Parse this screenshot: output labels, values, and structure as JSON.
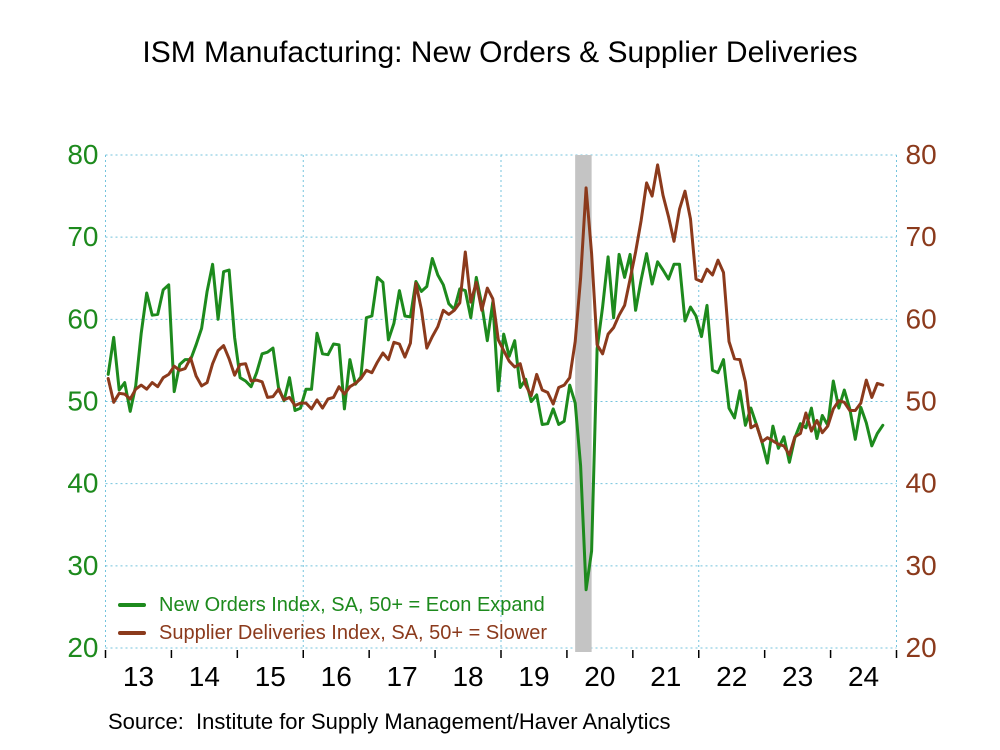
{
  "header": {
    "title": "ISM Manufacturing: New Orders & Supplier Deliveries"
  },
  "source": {
    "text": "Source:  Institute for Supply Management/Haver Analytics"
  },
  "legend": {
    "items": [
      {
        "label": "New Orders Index, SA, 50+ = Econ Expand",
        "color": "#1d8a1d"
      },
      {
        "label": "Supplier Deliveries Index, SA, 50+ = Slower",
        "color": "#8b3a1c"
      }
    ]
  },
  "chart_data": {
    "type": "line",
    "title": "ISM Manufacturing: New Orders & Supplier Deliveries",
    "xlabel": "",
    "ylabel": "",
    "x_months": "2013-01 to 2024-10, monthly",
    "x_axis": {
      "range_years": [
        2013,
        2025
      ],
      "tick_labels": [
        "13",
        "14",
        "15",
        "16",
        "17",
        "18",
        "19",
        "20",
        "21",
        "22",
        "23",
        "24"
      ]
    },
    "y_axis": {
      "ticks": [
        80,
        70,
        60,
        50,
        40,
        30,
        20
      ],
      "range": [
        20,
        80
      ],
      "left_color": "#1d8a1d",
      "right_color": "#8b3a1c"
    },
    "grid": {
      "color": "#74c3dd",
      "h_values": [
        80,
        70,
        60,
        50,
        40,
        30,
        20
      ],
      "v_years": [
        2013,
        2016,
        2019,
        2022,
        2025
      ],
      "style": "dashed"
    },
    "recession_band": {
      "label": "2020 recession shading",
      "from": "2020-02",
      "to": "2020-04",
      "start_index": 85,
      "end_index": 87,
      "color": "#c4c4c4"
    },
    "series": [
      {
        "name": "New Orders Index, SA, 50+ = Econ Expand",
        "id": "new-orders",
        "color": "#1d8a1d",
        "values": [
          53.3,
          57.8,
          51.4,
          52.3,
          48.8,
          51.9,
          58.3,
          63.2,
          60.5,
          60.6,
          63.6,
          64.2,
          51.2,
          54.5,
          55.1,
          55.1,
          56.9,
          58.9,
          63.4,
          66.7,
          60.0,
          65.8,
          66.0,
          57.8,
          52.9,
          52.5,
          51.8,
          53.5,
          55.8,
          56.0,
          56.5,
          51.7,
          50.1,
          52.9,
          48.9,
          49.2,
          51.5,
          51.5,
          58.3,
          55.8,
          55.7,
          57.0,
          56.9,
          49.1,
          55.1,
          52.1,
          53.0,
          60.2,
          60.4,
          65.1,
          64.5,
          57.5,
          59.5,
          63.5,
          60.4,
          60.3,
          64.6,
          63.4,
          64.0,
          67.4,
          65.4,
          64.2,
          61.9,
          61.2,
          63.7,
          63.5,
          60.2,
          65.1,
          61.8,
          57.4,
          62.1,
          51.3,
          58.2,
          55.5,
          57.4,
          51.7,
          52.7,
          50.0,
          50.8,
          47.2,
          47.3,
          49.1,
          47.2,
          47.6,
          52.0,
          49.8,
          42.2,
          27.1,
          31.8,
          56.4,
          61.5,
          67.6,
          60.2,
          67.9,
          65.1,
          67.9,
          61.1,
          64.8,
          68.0,
          64.3,
          67.0,
          66.0,
          64.9,
          66.7,
          66.7,
          59.8,
          61.5,
          60.4,
          57.9,
          61.7,
          53.8,
          53.5,
          55.1,
          49.2,
          48.0,
          51.3,
          47.1,
          49.2,
          47.2,
          45.1,
          42.5,
          47.0,
          44.3,
          45.7,
          42.6,
          45.6,
          47.3,
          46.8,
          49.2,
          45.5,
          48.3,
          47.1,
          52.5,
          49.2,
          51.4,
          49.1,
          45.4,
          49.3,
          47.4,
          44.6,
          46.1,
          47.1
        ]
      },
      {
        "name": "Supplier Deliveries Index, SA, 50+ = Slower",
        "id": "supplier-deliveries",
        "color": "#8b3a1c",
        "values": [
          52.8,
          49.9,
          51.0,
          50.9,
          50.3,
          51.5,
          52.0,
          51.5,
          52.3,
          51.8,
          52.9,
          53.3,
          54.3,
          53.8,
          54.0,
          55.3,
          53.1,
          51.9,
          52.3,
          54.6,
          56.2,
          56.8,
          55.2,
          53.2,
          54.5,
          54.6,
          52.5,
          52.6,
          52.4,
          50.5,
          50.6,
          51.5,
          50.2,
          50.5,
          49.5,
          49.8,
          49.8,
          49.1,
          50.2,
          49.2,
          50.3,
          50.5,
          51.8,
          50.9,
          51.8,
          52.2,
          52.8,
          53.8,
          53.5,
          54.8,
          55.9,
          55.1,
          57.2,
          57.0,
          55.4,
          57.1,
          64.4,
          61.2,
          56.5,
          57.9,
          59.1,
          61.1,
          60.6,
          61.1,
          62.0,
          68.2,
          62.1,
          64.5,
          61.1,
          63.8,
          62.5,
          57.5,
          56.2,
          54.9,
          54.2,
          54.6,
          52.0,
          50.7,
          53.3,
          51.4,
          51.1,
          49.7,
          51.7,
          52.0,
          52.9,
          57.3,
          65.0,
          76.0,
          68.0,
          56.9,
          55.8,
          58.2,
          59.0,
          60.5,
          61.7,
          64.9,
          68.2,
          72.0,
          76.6,
          75.0,
          78.8,
          75.1,
          72.5,
          69.5,
          73.4,
          75.6,
          72.2,
          64.9,
          64.6,
          66.1,
          65.4,
          67.2,
          65.7,
          57.3,
          55.2,
          55.1,
          52.4,
          46.8,
          47.2,
          45.1,
          45.6,
          45.2,
          44.8,
          44.6,
          43.5,
          45.7,
          46.1,
          48.6,
          46.4,
          47.7,
          46.2,
          47.0,
          49.1,
          50.1,
          49.9,
          48.9,
          48.9,
          49.8,
          52.6,
          50.5,
          52.2,
          52.0
        ]
      }
    ],
    "legend_position": "bottom-left-inside"
  }
}
